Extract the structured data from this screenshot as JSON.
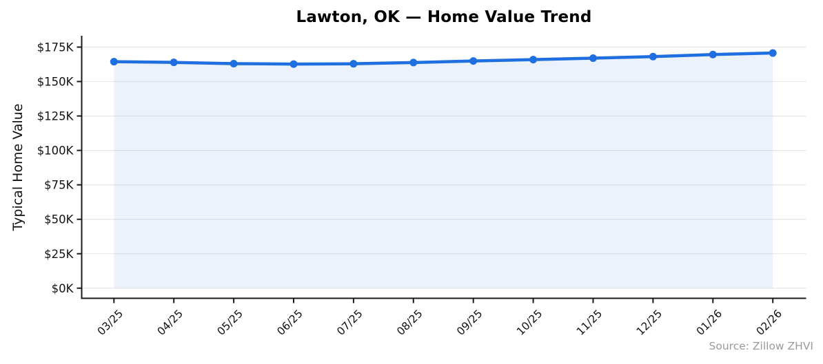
{
  "title": "Lawton, OK — Home Value Trend",
  "source": "Source: Zillow ZHVI",
  "chart_data": {
    "type": "line",
    "title": "Lawton, OK — Home Value Trend",
    "xlabel": "",
    "ylabel": "Typical Home Value",
    "categories": [
      "03/25",
      "04/25",
      "05/25",
      "06/25",
      "07/25",
      "08/25",
      "09/25",
      "10/25",
      "11/25",
      "12/25",
      "01/26",
      "02/26"
    ],
    "values": [
      164400,
      163900,
      163000,
      162700,
      162900,
      163800,
      164900,
      165900,
      167000,
      168100,
      169600,
      170700
    ],
    "ytick_labels": [
      "$0K",
      "$25K",
      "$50K",
      "$75K",
      "$100K",
      "$125K",
      "$150K",
      "$175K"
    ],
    "ytick_values": [
      0,
      25000,
      50000,
      75000,
      100000,
      125000,
      150000,
      175000
    ],
    "ylim": [
      0,
      183750
    ],
    "grid": true,
    "legend": false,
    "area_fill": true,
    "markers": true,
    "annotation": "Source: Zillow ZHVI",
    "colors": {
      "line": "#1f6fe0",
      "fill": "rgba(31,111,224,0.09)",
      "grid": "#e8e8e8",
      "axis": "#1a1a1a",
      "tick_label": "#111111",
      "title": "#000000",
      "source": "#9a9a9a"
    }
  }
}
